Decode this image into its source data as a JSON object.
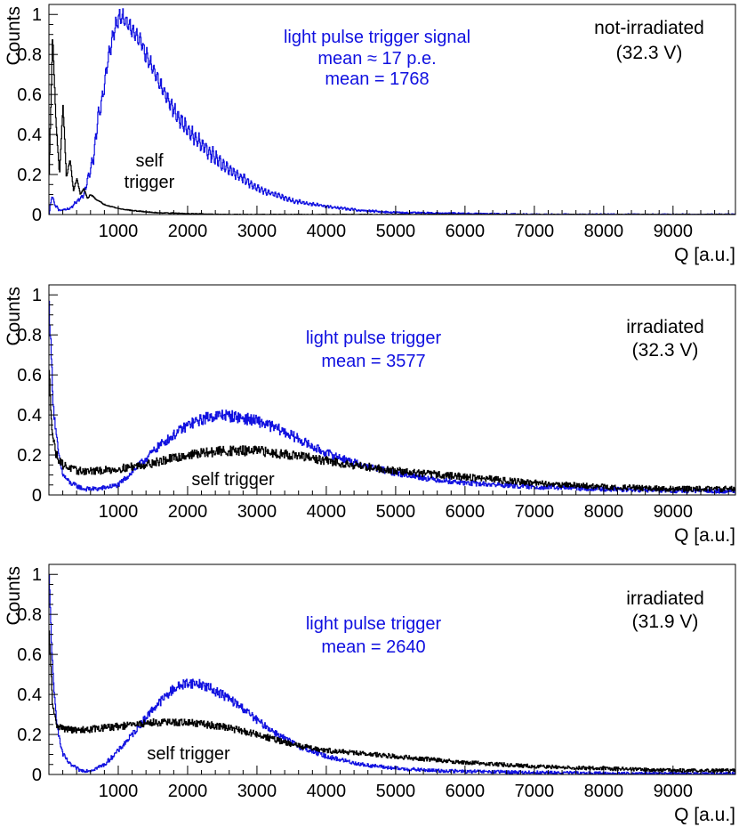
{
  "chart_data": [
    {
      "type": "line",
      "xlabel": "Q [a.u.]",
      "ylabel": "Counts",
      "xlim": [
        0,
        9900
      ],
      "ylim": [
        0,
        1.05
      ],
      "xticks": [
        1000,
        2000,
        3000,
        4000,
        5000,
        6000,
        7000,
        8000,
        9000
      ],
      "yticks": [
        0,
        0.2,
        0.4,
        0.6,
        0.8,
        1
      ],
      "ytick_labels": [
        "0",
        "0.2",
        "0.4",
        "0.6",
        "0.8",
        "1"
      ],
      "condition": [
        "not-irradiated",
        "(32.3 V)"
      ],
      "blue_annotation": [
        "light pulse trigger signal",
        "mean ≈ 17 p.e.",
        "mean  = 1768"
      ],
      "black_annotation": [
        "self",
        "trigger"
      ],
      "colors": {
        "light_pulse": "#1010e0",
        "self_trigger": "#000000"
      },
      "series": [
        {
          "name": "light pulse trigger",
          "color": "#1010e0",
          "x": [
            0,
            40,
            80,
            150,
            300,
            500,
            650,
            700,
            750,
            800,
            850,
            900,
            950,
            1000,
            1050,
            1100,
            1150,
            1200,
            1300,
            1400,
            1500,
            1600,
            1800,
            2000,
            2200,
            2500,
            2800,
            3000,
            3500,
            4000,
            4500,
            5000,
            6000,
            7000,
            8000,
            9900
          ],
          "y": [
            0,
            0.1,
            0.05,
            0.02,
            0.03,
            0.1,
            0.3,
            0.48,
            0.55,
            0.66,
            0.78,
            0.86,
            0.93,
            0.98,
            0.99,
            0.96,
            0.95,
            0.92,
            0.87,
            0.8,
            0.72,
            0.65,
            0.52,
            0.42,
            0.35,
            0.25,
            0.18,
            0.13,
            0.07,
            0.04,
            0.02,
            0.01,
            0.005,
            0,
            0,
            0
          ],
          "ripple": 0.035,
          "ripple_period": 50,
          "noise": 0.01
        },
        {
          "name": "self trigger",
          "color": "#000000",
          "x": [
            0,
            50,
            100,
            150,
            200,
            250,
            300,
            350,
            400,
            450,
            500,
            550,
            600,
            700,
            800,
            900,
            1000,
            1200,
            1500,
            2000,
            2500,
            9900
          ],
          "y": [
            0.2,
            0.9,
            0.45,
            0.2,
            0.55,
            0.18,
            0.28,
            0.12,
            0.18,
            0.1,
            0.13,
            0.08,
            0.1,
            0.07,
            0.05,
            0.04,
            0.03,
            0.02,
            0.01,
            0.005,
            0,
            0
          ],
          "ripple": 0,
          "ripple_period": 50,
          "noise": 0.005
        }
      ]
    },
    {
      "type": "line",
      "xlabel": "Q [a.u.]",
      "ylabel": "Counts",
      "xlim": [
        0,
        9900
      ],
      "ylim": [
        0,
        1.05
      ],
      "xticks": [
        1000,
        2000,
        3000,
        4000,
        5000,
        6000,
        7000,
        8000,
        9000
      ],
      "yticks": [
        0,
        0.2,
        0.4,
        0.6,
        0.8,
        1
      ],
      "ytick_labels": [
        "0",
        "0.2",
        "0.4",
        "0.6",
        "0.8",
        "1"
      ],
      "condition": [
        "irradiated",
        "(32.3 V)"
      ],
      "blue_annotation": [
        "light pulse trigger",
        "mean  = 3577"
      ],
      "black_annotation": [
        "self trigger"
      ],
      "colors": {
        "light_pulse": "#1010e0",
        "self_trigger": "#000000"
      },
      "series": [
        {
          "name": "light pulse trigger",
          "color": "#1010e0",
          "x": [
            0,
            30,
            60,
            100,
            150,
            200,
            300,
            500,
            700,
            1000,
            1300,
            1600,
            1800,
            2000,
            2300,
            2500,
            2700,
            3000,
            3300,
            3600,
            3800,
            4000,
            4500,
            5000,
            5500,
            6000,
            7000,
            8000,
            9000,
            9900
          ],
          "y": [
            0.95,
            0.7,
            0.45,
            0.3,
            0.17,
            0.1,
            0.06,
            0.03,
            0.03,
            0.05,
            0.15,
            0.25,
            0.3,
            0.35,
            0.39,
            0.4,
            0.39,
            0.37,
            0.33,
            0.28,
            0.24,
            0.21,
            0.15,
            0.11,
            0.08,
            0.06,
            0.04,
            0.03,
            0.02,
            0.02
          ],
          "ripple": 0,
          "ripple_period": 50,
          "noise": 0.025
        },
        {
          "name": "self trigger",
          "color": "#000000",
          "x": [
            0,
            50,
            100,
            200,
            400,
            700,
            1000,
            1500,
            2000,
            2500,
            3000,
            3500,
            4000,
            5000,
            6000,
            7000,
            8000,
            9000,
            9900
          ],
          "y": [
            0.6,
            0.3,
            0.2,
            0.15,
            0.12,
            0.12,
            0.13,
            0.16,
            0.2,
            0.22,
            0.22,
            0.2,
            0.17,
            0.12,
            0.09,
            0.06,
            0.04,
            0.03,
            0.03
          ],
          "ripple": 0,
          "ripple_period": 50,
          "noise": 0.03
        }
      ]
    },
    {
      "type": "line",
      "xlabel": "Q [a.u.]",
      "ylabel": "Counts",
      "xlim": [
        0,
        9900
      ],
      "ylim": [
        0,
        1.05
      ],
      "xticks": [
        1000,
        2000,
        3000,
        4000,
        5000,
        6000,
        7000,
        8000,
        9000
      ],
      "yticks": [
        0,
        0.2,
        0.4,
        0.6,
        0.8,
        1
      ],
      "ytick_labels": [
        "0",
        "0.2",
        "0.4",
        "0.6",
        "0.8",
        "1"
      ],
      "condition": [
        "irradiated",
        "(31.9 V)"
      ],
      "blue_annotation": [
        "light pulse trigger",
        "mean  = 2640"
      ],
      "black_annotation": [
        "self trigger"
      ],
      "colors": {
        "light_pulse": "#1010e0",
        "self_trigger": "#000000"
      },
      "series": [
        {
          "name": "light pulse trigger",
          "color": "#1010e0",
          "x": [
            0,
            30,
            60,
            100,
            150,
            200,
            300,
            450,
            600,
            800,
            1000,
            1200,
            1500,
            1800,
            2000,
            2200,
            2500,
            2800,
            3000,
            3300,
            3600,
            4000,
            4500,
            5000,
            5500,
            6000,
            7000,
            8000,
            9900
          ],
          "y": [
            0.98,
            0.7,
            0.45,
            0.3,
            0.17,
            0.1,
            0.05,
            0.02,
            0.02,
            0.05,
            0.12,
            0.2,
            0.33,
            0.43,
            0.46,
            0.45,
            0.4,
            0.33,
            0.27,
            0.2,
            0.14,
            0.09,
            0.05,
            0.03,
            0.02,
            0.015,
            0.01,
            0.005,
            0.003
          ],
          "ripple": 0,
          "ripple_period": 50,
          "noise": 0.02
        },
        {
          "name": "self trigger",
          "color": "#000000",
          "x": [
            0,
            50,
            100,
            200,
            400,
            700,
            1000,
            1500,
            2000,
            2500,
            3000,
            3500,
            4000,
            5000,
            6000,
            7000,
            8000,
            9000,
            9900
          ],
          "y": [
            0.7,
            0.35,
            0.25,
            0.23,
            0.22,
            0.23,
            0.24,
            0.26,
            0.26,
            0.24,
            0.2,
            0.15,
            0.12,
            0.09,
            0.06,
            0.04,
            0.03,
            0.02,
            0.02
          ],
          "ripple": 0,
          "ripple_period": 50,
          "noise": 0.02
        }
      ]
    }
  ]
}
